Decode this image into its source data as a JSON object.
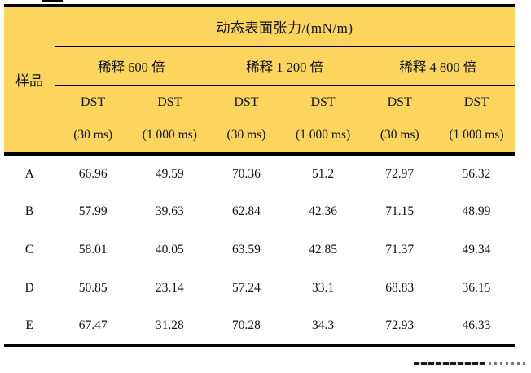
{
  "colors": {
    "header_bg": "#fbd55e",
    "body_bg": "#ffffff",
    "border": "#000000",
    "text": "#111111"
  },
  "table": {
    "corner_header": "样品",
    "main_header": "动态表面张力/(mN/m)",
    "groups": [
      {
        "label": "稀释 600 倍"
      },
      {
        "label": "稀释 1 200 倍"
      },
      {
        "label": "稀释 4 800 倍"
      }
    ],
    "sub_dst": [
      "DST",
      "DST",
      "DST",
      "DST",
      "DST",
      "DST"
    ],
    "sub_ms": [
      "(30 ms)",
      "(1 000 ms)",
      "(30 ms)",
      "(1 000 ms)",
      "(30 ms)",
      "(1 000 ms)"
    ],
    "rows": [
      {
        "sample": "A",
        "values": [
          "66.96",
          "49.59",
          "70.36",
          "51.2",
          "72.97",
          "56.32"
        ]
      },
      {
        "sample": "B",
        "values": [
          "57.99",
          "39.63",
          "62.84",
          "42.36",
          "71.15",
          "48.99"
        ]
      },
      {
        "sample": "C",
        "values": [
          "58.01",
          "40.05",
          "63.59",
          "42.85",
          "71.37",
          "49.34"
        ]
      },
      {
        "sample": "D",
        "values": [
          "50.85",
          "23.14",
          "57.24",
          "33.1",
          "68.83",
          "36.15"
        ]
      },
      {
        "sample": "E",
        "values": [
          "67.47",
          "31.28",
          "70.28",
          "34.3",
          "72.93",
          "46.33"
        ]
      }
    ]
  }
}
